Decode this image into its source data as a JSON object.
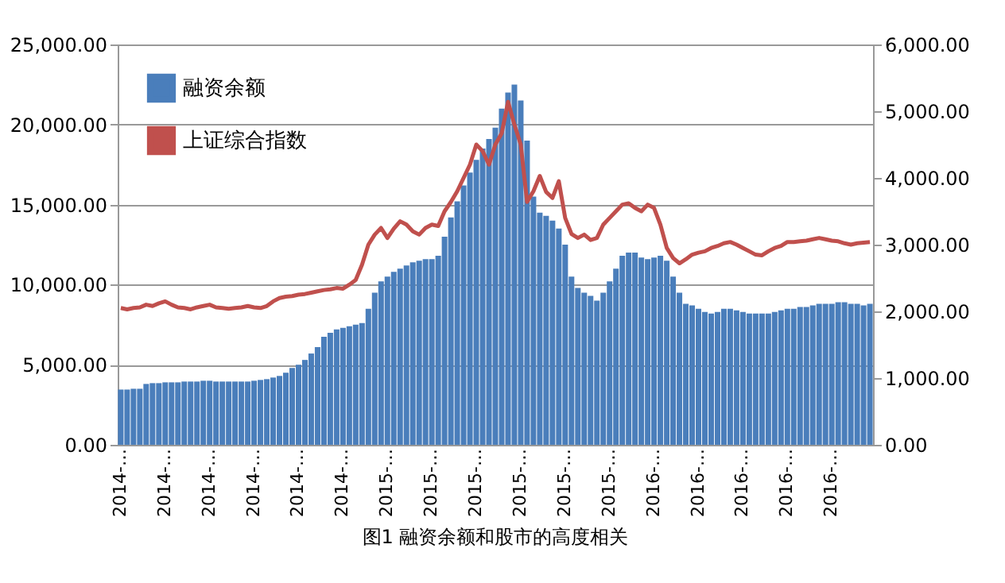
{
  "chart_data": {
    "type": "bar",
    "title": "图1 融资余额和股市的高度相关",
    "categories": [
      "2014-…",
      null,
      null,
      null,
      null,
      null,
      null,
      "2014-…",
      null,
      null,
      null,
      null,
      null,
      null,
      "2014-…",
      null,
      null,
      null,
      null,
      null,
      null,
      "2014-…",
      null,
      null,
      null,
      null,
      null,
      null,
      "2014-…",
      null,
      null,
      null,
      null,
      null,
      null,
      "2014-…",
      null,
      null,
      null,
      null,
      null,
      null,
      "2015-…",
      null,
      null,
      null,
      null,
      null,
      null,
      "2015-…",
      null,
      null,
      null,
      null,
      null,
      null,
      "2015-…",
      null,
      null,
      null,
      null,
      null,
      null,
      "2015-…",
      null,
      null,
      null,
      null,
      null,
      null,
      "2015-…",
      null,
      null,
      null,
      null,
      null,
      null,
      "2015-…",
      null,
      null,
      null,
      null,
      null,
      null,
      "2016-…",
      null,
      null,
      null,
      null,
      null,
      null,
      "2016-…",
      null,
      null,
      null,
      null,
      null,
      null,
      "2016-…",
      null,
      null,
      null,
      null,
      null,
      null,
      "2016-…",
      null,
      null,
      null,
      null,
      null,
      null,
      "2016-…",
      null,
      null,
      null,
      null,
      null,
      null
    ],
    "series": [
      {
        "name": "融资余额",
        "color": "#4a7ebb",
        "values": [
          3450,
          3450,
          3500,
          3500,
          3800,
          3850,
          3850,
          3900,
          3900,
          3900,
          3950,
          3950,
          3950,
          4000,
          4000,
          3950,
          3950,
          3950,
          3950,
          3950,
          3950,
          4000,
          4050,
          4100,
          4200,
          4300,
          4500,
          4800,
          5000,
          5300,
          5700,
          6100,
          6750,
          7000,
          7200,
          7300,
          7400,
          7500,
          7600,
          8500,
          9500,
          10200,
          10500,
          10800,
          11000,
          11200,
          11400,
          11500,
          11600,
          11600,
          11800,
          13000,
          14200,
          15200,
          16200,
          17000,
          17800,
          18500,
          19100,
          19800,
          21000,
          22000,
          22500,
          21500,
          19000,
          15500,
          14500,
          14300,
          14000,
          13500,
          12500,
          10500,
          9800,
          9500,
          9300,
          9000,
          9500,
          10200,
          11000,
          11800,
          12000,
          12000,
          11700,
          11600,
          11700,
          11800,
          11500,
          10500,
          9500,
          8800,
          8700,
          8500,
          8300,
          8200,
          8300,
          8500,
          8500,
          8400,
          8300,
          8200,
          8200,
          8200,
          8200,
          8300,
          8400,
          8500,
          8500,
          8600,
          8600,
          8700,
          8800,
          8800,
          8800,
          8900,
          8900,
          8800,
          8800,
          8700,
          8800
        ]
      },
      {
        "name": "上证综合指数",
        "type": "line",
        "axis": "y2",
        "color": "#c0504d",
        "values": [
          2050,
          2030,
          2050,
          2060,
          2100,
          2080,
          2120,
          2150,
          2100,
          2060,
          2050,
          2030,
          2060,
          2080,
          2100,
          2060,
          2050,
          2040,
          2050,
          2060,
          2080,
          2060,
          2050,
          2080,
          2150,
          2200,
          2220,
          2230,
          2250,
          2260,
          2280,
          2300,
          2320,
          2330,
          2350,
          2340,
          2400,
          2470,
          2700,
          3000,
          3150,
          3250,
          3100,
          3240,
          3350,
          3300,
          3200,
          3150,
          3250,
          3300,
          3280,
          3500,
          3640,
          3800,
          4000,
          4200,
          4500,
          4400,
          4200,
          4500,
          4670,
          5140,
          4800,
          4500,
          3640,
          3800,
          4030,
          3790,
          3700,
          3950,
          3400,
          3160,
          3100,
          3150,
          3070,
          3100,
          3300,
          3400,
          3500,
          3600,
          3620,
          3550,
          3500,
          3600,
          3550,
          3300,
          2950,
          2800,
          2720,
          2780,
          2850,
          2880,
          2900,
          2950,
          2980,
          3020,
          3040,
          3000,
          2950,
          2900,
          2850,
          2840,
          2900,
          2950,
          2980,
          3040,
          3040,
          3050,
          3060,
          3080,
          3100,
          3080,
          3060,
          3050,
          3020,
          3000,
          3020,
          3030,
          3040
        ]
      }
    ],
    "ylim": [
      0,
      25000
    ],
    "yticks": [
      {
        "value": 0,
        "label": "0.00"
      },
      {
        "value": 5000,
        "label": "5,000.00"
      },
      {
        "value": 10000,
        "label": "10,000.00"
      },
      {
        "value": 15000,
        "label": "15,000.00"
      },
      {
        "value": 20000,
        "label": "20,000.00"
      },
      {
        "value": 25000,
        "label": "25,000.00"
      }
    ],
    "y2lim": [
      0,
      6000
    ],
    "y2ticks": [
      {
        "value": 0,
        "label": "0.00"
      },
      {
        "value": 1000,
        "label": "1,000.00"
      },
      {
        "value": 2000,
        "label": "2,000.00"
      },
      {
        "value": 3000,
        "label": "3,000.00"
      },
      {
        "value": 4000,
        "label": "4,000.00"
      },
      {
        "value": 5000,
        "label": "5,000.00"
      },
      {
        "value": 6000,
        "label": "6,000.00"
      }
    ],
    "grid": "y",
    "legend": "top left"
  }
}
